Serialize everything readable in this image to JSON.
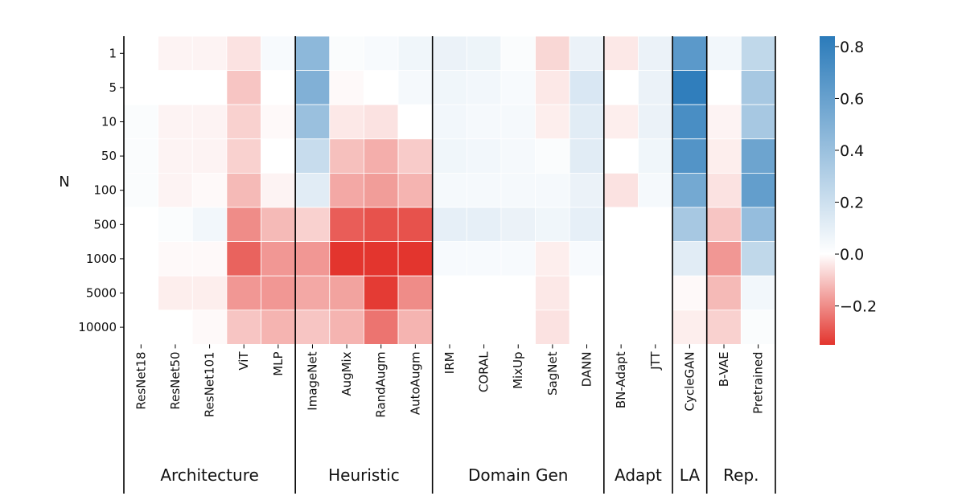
{
  "chart_data": {
    "type": "heatmap",
    "ylabel": "N",
    "rows": [
      "1",
      "5",
      "10",
      "50",
      "100",
      "500",
      "1000",
      "5000",
      "10000"
    ],
    "columns": [
      "ResNet18",
      "ResNet50",
      "ResNet101",
      "ViT",
      "MLP",
      "ImageNet",
      "AugMix",
      "RandAugm",
      "AutoAugm",
      "IRM",
      "CORAL",
      "MixUp",
      "SagNet",
      "DANN",
      "BN-Adapt",
      "JTT",
      "CycleGAN",
      "B-VAE",
      "Pretrained"
    ],
    "groups": [
      {
        "name": "Architecture",
        "count": 5
      },
      {
        "name": "Heuristic",
        "count": 4
      },
      {
        "name": "Domain Gen",
        "count": 5
      },
      {
        "name": "Adapt",
        "count": 2
      },
      {
        "name": "LA",
        "count": 1
      },
      {
        "name": "Rep.",
        "count": 2
      }
    ],
    "values": [
      [
        0.0,
        -0.02,
        -0.02,
        -0.05,
        0.03,
        0.45,
        0.02,
        0.03,
        0.06,
        0.08,
        0.07,
        0.02,
        -0.07,
        0.08,
        -0.04,
        0.08,
        0.65,
        0.05,
        0.25
      ],
      [
        0.0,
        0.0,
        0.0,
        -0.1,
        0.0,
        0.5,
        -0.01,
        0.0,
        0.04,
        0.06,
        0.05,
        0.03,
        -0.04,
        0.15,
        0.0,
        0.08,
        0.82,
        0.0,
        0.35
      ],
      [
        0.02,
        -0.02,
        -0.02,
        -0.08,
        -0.01,
        0.4,
        -0.04,
        -0.05,
        0.0,
        0.05,
        0.04,
        0.04,
        -0.03,
        0.12,
        -0.03,
        0.08,
        0.72,
        -0.02,
        0.35
      ],
      [
        0.02,
        -0.02,
        -0.02,
        -0.08,
        0.0,
        0.22,
        -0.11,
        -0.14,
        -0.09,
        0.06,
        0.05,
        0.04,
        0.02,
        0.12,
        0.0,
        0.06,
        0.68,
        -0.03,
        0.58
      ],
      [
        0.02,
        -0.02,
        -0.01,
        -0.12,
        -0.02,
        0.12,
        -0.15,
        -0.17,
        -0.13,
        0.04,
        0.04,
        0.04,
        0.04,
        0.08,
        -0.05,
        0.04,
        0.55,
        -0.05,
        0.62
      ],
      [
        0.0,
        0.02,
        0.05,
        -0.2,
        -0.12,
        -0.08,
        -0.28,
        -0.3,
        -0.3,
        0.1,
        0.1,
        0.08,
        0.06,
        0.1,
        0.0,
        0.0,
        0.35,
        -0.1,
        0.42
      ],
      [
        0.0,
        -0.01,
        -0.01,
        -0.27,
        -0.18,
        -0.18,
        -0.35,
        -0.36,
        -0.35,
        0.03,
        0.03,
        0.03,
        -0.03,
        0.03,
        0.0,
        0.0,
        0.12,
        -0.18,
        0.25
      ],
      [
        0.0,
        -0.03,
        -0.03,
        -0.18,
        -0.18,
        -0.15,
        -0.16,
        -0.34,
        -0.2,
        0.0,
        0.0,
        0.0,
        -0.04,
        0.0,
        0.0,
        0.0,
        -0.01,
        -0.12,
        0.05
      ],
      [
        0.0,
        0.0,
        -0.01,
        -0.1,
        -0.13,
        -0.1,
        -0.13,
        -0.24,
        -0.13,
        0.0,
        0.0,
        0.0,
        -0.05,
        0.0,
        0.0,
        0.0,
        -0.03,
        -0.08,
        0.02
      ]
    ],
    "colorbar": {
      "min": -0.35,
      "max": 0.84,
      "ticks": [
        0.8,
        0.6,
        0.4,
        0.2,
        0.0,
        -0.2
      ],
      "tick_labels": [
        "0.8",
        "0.6",
        "0.4",
        "0.2",
        "0.0",
        "−0.2"
      ]
    },
    "colors": {
      "negative": "#e3352e",
      "zero": "#ffffff",
      "positive": "#2b7bba",
      "separator": "#000000"
    }
  }
}
